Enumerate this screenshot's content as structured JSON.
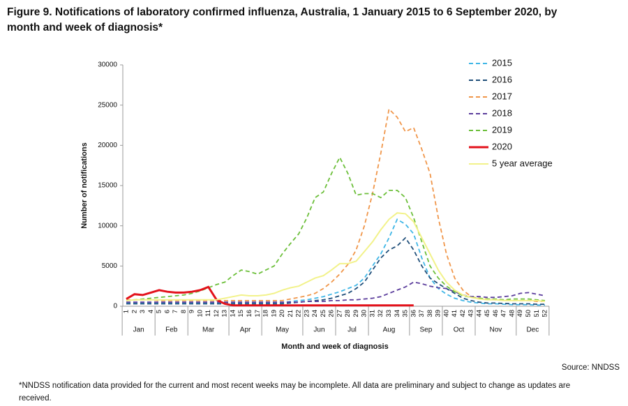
{
  "chart_data": {
    "type": "line",
    "title": "Figure 9. Notifications of laboratory confirmed influenza, Australia, 1 January 2015 to 6 September 2020, by",
    "title_line2": "month and week of diagnosis*",
    "ylabel": "Number of notifications",
    "xlabel": "Month and week of diagnosis",
    "source": "Source: NNDSS",
    "footnote": "*NNDSS notification data provided for the current and most recent weeks may be incomplete. All data are preliminary and subject to change as updates are",
    "footnote_line2": "received.",
    "months": [
      "Jan",
      "Feb",
      "Mar",
      "Apr",
      "May",
      "Jun",
      "Jul",
      "Aug",
      "Sep",
      "Oct",
      "Nov",
      "Dec"
    ],
    "categories": [
      "1",
      "2",
      "3",
      "4",
      "5",
      "6",
      "7",
      "8",
      "9",
      "10",
      "11",
      "12",
      "13",
      "14",
      "15",
      "16",
      "17",
      "18",
      "19",
      "20",
      "21",
      "22",
      "23",
      "24",
      "25",
      "26",
      "27",
      "28",
      "29",
      "30",
      "31",
      "32",
      "33",
      "34",
      "35",
      "36",
      "37",
      "38",
      "39",
      "40",
      "41",
      "42",
      "43",
      "44",
      "45",
      "46",
      "47",
      "48",
      "49",
      "50",
      "51",
      "52"
    ],
    "ylim": [
      0,
      30000
    ],
    "yticks": [
      0,
      5000,
      10000,
      15000,
      20000,
      25000,
      30000
    ],
    "grid": false,
    "legend": "top-right",
    "series": [
      {
        "name": "2015",
        "color": "#3fb6e6",
        "dashed": true,
        "values": [
          400,
          400,
          400,
          400,
          400,
          400,
          400,
          400,
          400,
          400,
          400,
          400,
          400,
          400,
          400,
          400,
          400,
          400,
          400,
          400,
          600,
          700,
          800,
          1000,
          1200,
          1500,
          1800,
          2200,
          2600,
          3500,
          5000,
          6500,
          8500,
          10800,
          10200,
          9000,
          6000,
          3500,
          2200,
          1500,
          1000,
          700,
          500,
          400,
          300,
          300,
          250,
          200,
          200,
          200,
          150,
          150
        ]
      },
      {
        "name": "2016",
        "color": "#1f4e79",
        "dashed": true,
        "values": [
          300,
          300,
          300,
          300,
          300,
          300,
          300,
          300,
          300,
          300,
          300,
          300,
          300,
          300,
          300,
          300,
          300,
          300,
          300,
          300,
          400,
          500,
          600,
          700,
          800,
          1000,
          1300,
          1600,
          2200,
          3000,
          4500,
          6000,
          7000,
          7500,
          8500,
          7000,
          5000,
          3500,
          2800,
          2200,
          1600,
          1000,
          700,
          500,
          400,
          400,
          350,
          300,
          300,
          300,
          250,
          250
        ]
      },
      {
        "name": "2017",
        "color": "#f0964a",
        "dashed": true,
        "values": [
          800,
          800,
          800,
          800,
          700,
          700,
          700,
          700,
          700,
          700,
          700,
          700,
          700,
          700,
          700,
          700,
          700,
          700,
          700,
          700,
          900,
          1100,
          1300,
          1600,
          2200,
          3000,
          4000,
          5200,
          7000,
          10000,
          14000,
          19000,
          24500,
          23500,
          21700,
          22200,
          19500,
          16500,
          11000,
          6500,
          3500,
          2000,
          1200,
          1000,
          900,
          800,
          800,
          700,
          700,
          700,
          600,
          600
        ]
      },
      {
        "name": "2018",
        "color": "#5b3d9c",
        "dashed": true,
        "values": [
          500,
          500,
          500,
          500,
          500,
          500,
          500,
          500,
          500,
          500,
          500,
          500,
          500,
          500,
          500,
          500,
          500,
          500,
          500,
          500,
          500,
          500,
          600,
          600,
          600,
          700,
          700,
          800,
          800,
          900,
          1000,
          1200,
          1600,
          2000,
          2400,
          3000,
          2800,
          2500,
          2300,
          2200,
          1800,
          1400,
          1200,
          1200,
          1100,
          1100,
          1200,
          1300,
          1600,
          1700,
          1500,
          1300
        ]
      },
      {
        "name": "2019",
        "color": "#6cbf3a",
        "dashed": true,
        "values": [
          700,
          800,
          900,
          1000,
          1100,
          1200,
          1300,
          1400,
          1600,
          1900,
          2300,
          2700,
          3000,
          3800,
          4500,
          4300,
          4000,
          4500,
          5000,
          6500,
          7800,
          9000,
          11000,
          13500,
          14200,
          16500,
          18500,
          16500,
          13800,
          14000,
          14000,
          13500,
          14400,
          14400,
          13500,
          11000,
          8000,
          5000,
          3500,
          2500,
          1800,
          1300,
          1100,
          1000,
          900,
          900,
          800,
          900,
          900,
          900,
          800,
          700
        ]
      },
      {
        "name": "2020",
        "color": "#e3121b",
        "dashed": false,
        "width": 3,
        "values": [
          900,
          1500,
          1400,
          1700,
          2000,
          1800,
          1700,
          1700,
          1800,
          2000,
          2400,
          800,
          300,
          100,
          100,
          100,
          100,
          100,
          100,
          100,
          100,
          100,
          100,
          100,
          100,
          100,
          100,
          100,
          100,
          100,
          100,
          100,
          100,
          100,
          100,
          100,
          null,
          null,
          null,
          null,
          null,
          null,
          null,
          null,
          null,
          null,
          null,
          null,
          null,
          null,
          null,
          null
        ]
      },
      {
        "name": "5 year average",
        "color": "#f2f28a",
        "dashed": false,
        "width": 2,
        "values": [
          700,
          800,
          800,
          800,
          800,
          800,
          800,
          800,
          800,
          800,
          800,
          800,
          1000,
          1200,
          1400,
          1300,
          1300,
          1400,
          1600,
          2000,
          2300,
          2500,
          3000,
          3500,
          3800,
          4500,
          5300,
          5300,
          5600,
          6800,
          8000,
          9500,
          10800,
          11600,
          11500,
          10500,
          8500,
          6500,
          4500,
          3000,
          2000,
          1400,
          1100,
          900,
          800,
          800,
          700,
          700,
          700,
          700,
          700,
          600
        ]
      }
    ]
  }
}
